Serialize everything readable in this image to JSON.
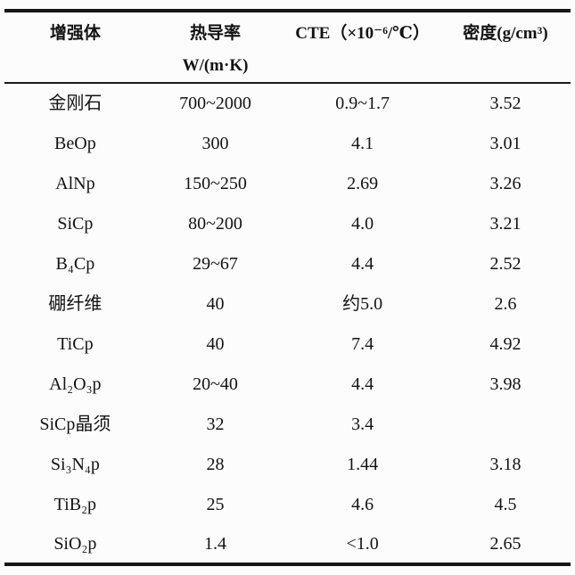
{
  "table": {
    "columns": [
      {
        "label": "增强体",
        "unit": ""
      },
      {
        "label": "热导率",
        "unit": "W/(m·K)"
      },
      {
        "label": "CTE（×10⁻⁶/℃）",
        "unit": ""
      },
      {
        "label": "密度(g/cm³)",
        "unit": ""
      }
    ],
    "rows": [
      {
        "name": "金刚石",
        "thermal_conductivity": "700~2000",
        "cte": "0.9~1.7",
        "density": "3.52"
      },
      {
        "name": "BeOp",
        "thermal_conductivity": "300",
        "cte": "4.1",
        "density": "3.01"
      },
      {
        "name": "AlNp",
        "thermal_conductivity": "150~250",
        "cte": "2.69",
        "density": "3.26"
      },
      {
        "name": "SiCp",
        "thermal_conductivity": "80~200",
        "cte": "4.0",
        "density": "3.21"
      },
      {
        "name": "B₄Cp",
        "thermal_conductivity": "29~67",
        "cte": "4.4",
        "density": "2.52"
      },
      {
        "name": "硼纤维",
        "thermal_conductivity": "40",
        "cte": "约5.0",
        "density": "2.6"
      },
      {
        "name": "TiCp",
        "thermal_conductivity": "40",
        "cte": "7.4",
        "density": "4.92"
      },
      {
        "name": "Al₂O₃p",
        "thermal_conductivity": "20~40",
        "cte": "4.4",
        "density": "3.98"
      },
      {
        "name": "SiCp晶须",
        "thermal_conductivity": "32",
        "cte": "3.4",
        "density": ""
      },
      {
        "name": "Si₃N₄p",
        "thermal_conductivity": "28",
        "cte": "1.44",
        "density": "3.18"
      },
      {
        "name": "TiB₂p",
        "thermal_conductivity": "25",
        "cte": "4.6",
        "density": "4.5"
      },
      {
        "name": "SiO₂p",
        "thermal_conductivity": "1.4",
        "cte": "<1.0",
        "density": "2.65"
      }
    ]
  }
}
